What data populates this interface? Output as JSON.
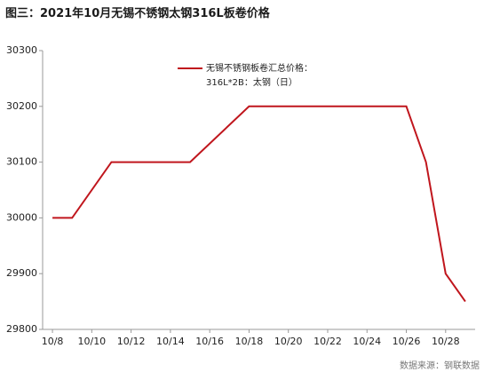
{
  "chart_data": {
    "type": "line",
    "title": "图三：2021年10月无锡不锈钢太钢316L板卷价格",
    "source": "数据来源：钢联数据",
    "x": [
      8,
      9,
      11,
      12,
      13,
      14,
      15,
      18,
      19,
      20,
      21,
      22,
      25,
      26,
      27,
      28,
      29
    ],
    "series": [
      {
        "name": "无锡不锈钢板卷汇总价格：\n316L*2B：太钢（日）",
        "color": "#c0161d",
        "values": [
          30000,
          30000,
          30100,
          30100,
          30100,
          30100,
          30100,
          30200,
          30200,
          30200,
          30200,
          30200,
          30200,
          30200,
          30100,
          29900,
          29850
        ]
      }
    ],
    "xlim": [
      7.5,
      29.5
    ],
    "xticks": [
      {
        "value": 8,
        "label": "10/8"
      },
      {
        "value": 10,
        "label": "10/10"
      },
      {
        "value": 12,
        "label": "10/12"
      },
      {
        "value": 14,
        "label": "10/14"
      },
      {
        "value": 16,
        "label": "10/16"
      },
      {
        "value": 18,
        "label": "10/18"
      },
      {
        "value": 20,
        "label": "10/20"
      },
      {
        "value": 22,
        "label": "10/22"
      },
      {
        "value": 24,
        "label": "10/24"
      },
      {
        "value": 26,
        "label": "10/26"
      },
      {
        "value": 28,
        "label": "10/28"
      }
    ],
    "ylim": [
      29800,
      30300
    ],
    "yticks": [
      29800,
      29900,
      30000,
      30100,
      30200,
      30300
    ],
    "grid": false
  }
}
